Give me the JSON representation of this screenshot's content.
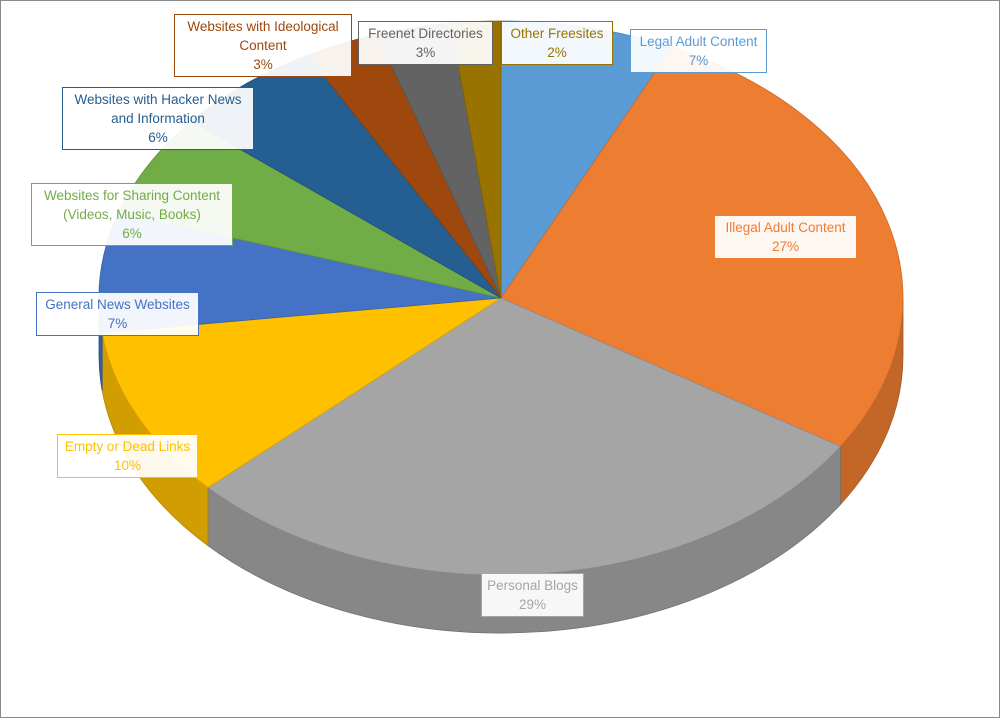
{
  "chart_data": {
    "type": "pie",
    "style": "3d",
    "title": "",
    "start_angle_deg": 0,
    "direction": "clockwise",
    "slices": [
      {
        "label": "Legal Adult Content",
        "value": 7,
        "percent_label": "7%",
        "color": "#5b9bd5",
        "label_color": "#5b9bd5"
      },
      {
        "label": "Illegal Adult Content",
        "value": 27,
        "percent_label": "27%",
        "color": "#ed7d31",
        "label_color": "#ed7d31"
      },
      {
        "label": "Personal Blogs",
        "value": 29,
        "percent_label": "29%",
        "color": "#a5a5a5",
        "label_color": "#a5a5a5"
      },
      {
        "label": "Empty or Dead Links",
        "value": 10,
        "percent_label": "10%",
        "color": "#ffc000",
        "label_color": "#ffc000"
      },
      {
        "label": "General News Websites",
        "value": 7,
        "percent_label": "7%",
        "color": "#4472c4",
        "label_color": "#4472c4"
      },
      {
        "label": "Websites for Sharing Content (Videos, Music, Books)",
        "value": 6,
        "percent_label": "6%",
        "color": "#70ad47",
        "label_color": "#70ad47"
      },
      {
        "label": "Websites with Hacker News and Information",
        "value": 6,
        "percent_label": "6%",
        "color": "#255e91",
        "label_color": "#255e91"
      },
      {
        "label": "Websites with Ideological Content",
        "value": 3,
        "percent_label": "3%",
        "color": "#9e480e",
        "label_color": "#9e480e"
      },
      {
        "label": "Freenet Directories",
        "value": 3,
        "percent_label": "3%",
        "color": "#636363",
        "label_color": "#636363"
      },
      {
        "label": "Other Freesites",
        "value": 2,
        "percent_label": "2%",
        "color": "#997300",
        "label_color": "#997300"
      }
    ]
  },
  "labels": [
    {
      "lines": [
        "Legal Adult Content",
        "7%"
      ]
    },
    {
      "lines": [
        "Illegal Adult Content",
        "27%"
      ]
    },
    {
      "lines": [
        "Personal Blogs",
        "29%"
      ]
    },
    {
      "lines": [
        "Empty or Dead Links",
        "10%"
      ]
    },
    {
      "lines": [
        "General News Websites",
        "7%"
      ]
    },
    {
      "lines": [
        "Websites for Sharing Content",
        "(Videos, Music, Books)",
        "6%"
      ]
    },
    {
      "lines": [
        "Websites with Hacker News",
        "and Information",
        "6%"
      ]
    },
    {
      "lines": [
        "Websites with Ideological",
        "Content",
        "3%"
      ]
    },
    {
      "lines": [
        "Freenet Directories",
        "3%"
      ]
    },
    {
      "lines": [
        "Other Freesites",
        "2%"
      ]
    }
  ]
}
